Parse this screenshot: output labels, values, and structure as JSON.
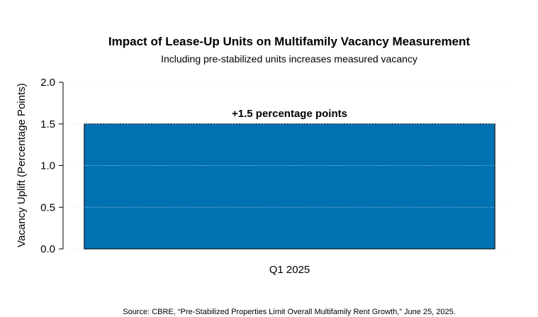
{
  "chart_data": {
    "type": "bar",
    "title": "Impact of Lease-Up Units on Multifamily Vacancy Measurement",
    "subtitle": "Including pre-stabilized units increases measured vacancy",
    "xlabel": "",
    "ylabel": "Vacancy Uplift (Percentage Points)",
    "categories": [
      "Q1 2025"
    ],
    "values": [
      1.5
    ],
    "data_labels": [
      "+1.5 percentage points"
    ],
    "ylim": [
      0,
      2.0
    ],
    "yticks": [
      0.0,
      0.5,
      1.0,
      1.5,
      2.0
    ],
    "ytick_labels": [
      "0.0",
      "0.5",
      "1.0",
      "1.5",
      "2.0"
    ],
    "grid": true,
    "legend": "none",
    "bar_color": "#0072b2",
    "source": "Source: CBRE, “Pre-Stabilized Properties Limit Overall Multifamily Rent Growth,” June 25, 2025."
  }
}
